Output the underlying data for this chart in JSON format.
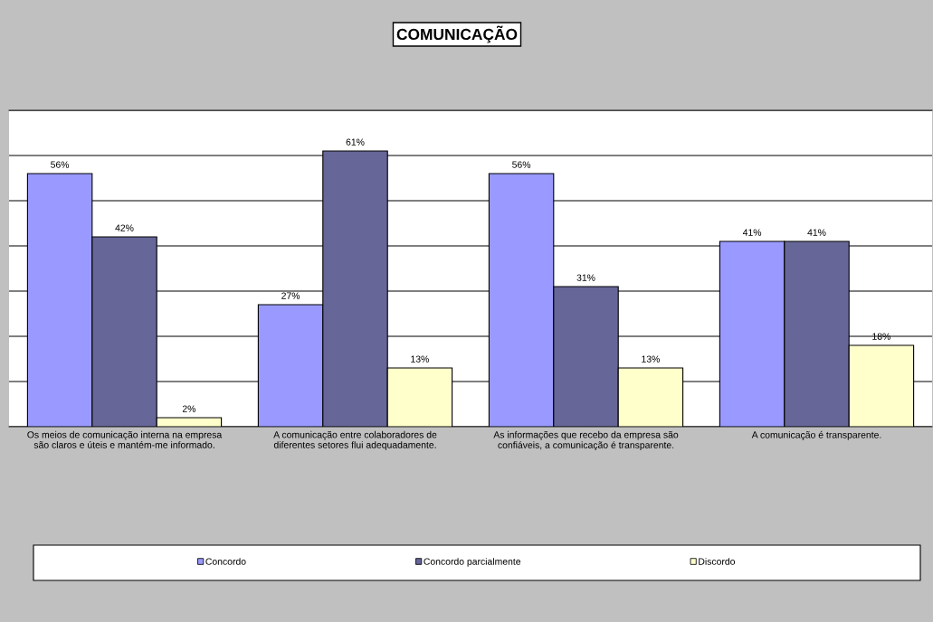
{
  "chart_data": {
    "type": "bar",
    "title": "COMUNICAÇÃO",
    "categories": [
      "Os meios de comunicação interna na empresa são claros e úteis e mantém-me informado.",
      "A comunicação entre colaboradores de diferentes setores flui adequadamente.",
      "As informações que recebo da empresa são confiáveis, a comunicação é transparente.",
      "A comunicação é transparente."
    ],
    "series": [
      {
        "name": "Concordo",
        "color": "#9999ff",
        "values": [
          56,
          27,
          56,
          41
        ],
        "value_labels": [
          "56%",
          "27%",
          "56%",
          "41%"
        ]
      },
      {
        "name": "Concordo parcialmente",
        "color": "#666699",
        "values": [
          42,
          61,
          31,
          41
        ],
        "value_labels": [
          "42%",
          "61%",
          "31%",
          "41%"
        ]
      },
      {
        "name": "Discordo",
        "color": "#ffffcc",
        "values": [
          2,
          13,
          13,
          18
        ],
        "value_labels": [
          "2%",
          "13%",
          "13%",
          "18%"
        ]
      }
    ],
    "ylim": [
      0,
      70
    ],
    "yticks": [
      {
        "value": 0,
        "label": null
      },
      {
        "value": 10,
        "label": null
      },
      {
        "value": 20,
        "label": null
      },
      {
        "value": 30,
        "label": null
      },
      {
        "value": 40,
        "label": null
      },
      {
        "value": 50,
        "label": null
      },
      {
        "value": 60,
        "label": null
      },
      {
        "value": 70,
        "label": null
      }
    ],
    "tick_labels": "x",
    "grid": "y",
    "legend": "bottom"
  }
}
